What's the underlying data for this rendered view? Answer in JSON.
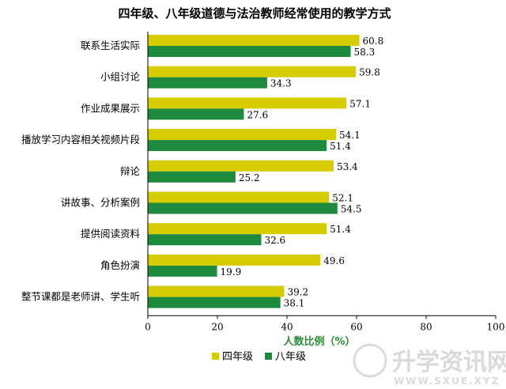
{
  "chart_data": {
    "type": "bar",
    "orientation": "horizontal",
    "title": "四年级、八年级道德与法治教师经常使用的教学方式",
    "categories": [
      "联系生活实际",
      "小组讨论",
      "作业成果展示",
      "播放学习内容相关视频片段",
      "辩论",
      "讲故事、分析案例",
      "提供阅读资料",
      "角色扮演",
      "整节课都是老师讲、学生听"
    ],
    "series": [
      {
        "name": "四年级",
        "color": "#d6cd00",
        "values": [
          60.8,
          59.8,
          57.1,
          54.1,
          53.4,
          52.1,
          51.4,
          49.6,
          39.2
        ]
      },
      {
        "name": "八年级",
        "color": "#1e8a3e",
        "values": [
          58.3,
          34.3,
          27.6,
          51.4,
          25.2,
          54.5,
          32.6,
          19.9,
          38.1
        ]
      }
    ],
    "xlabel": "人数比例（%）",
    "xlim": [
      0,
      100
    ],
    "xticks": [
      "0",
      "20",
      "40",
      "60",
      "80",
      "100"
    ],
    "grid": false,
    "legend": "bottom-center"
  },
  "watermark": {
    "main": "升学资讯网",
    "sub": "WWW.SXUE.XYZ"
  }
}
